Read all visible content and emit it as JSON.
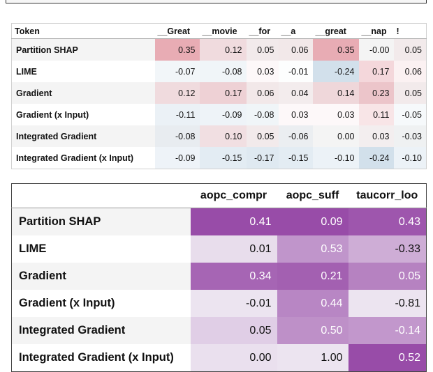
{
  "table1": {
    "header": [
      "Token",
      "__Great",
      "__movie",
      "__for",
      "__a",
      "__great",
      "__nap",
      "!"
    ],
    "rows": [
      [
        "Partition SHAP",
        "0.35",
        "0.12",
        "0.05",
        "0.06",
        "0.35",
        "-0.00",
        "0.05"
      ],
      [
        "LIME",
        "-0.07",
        "-0.08",
        "0.03",
        "-0.01",
        "-0.24",
        "0.17",
        "0.06"
      ],
      [
        "Gradient",
        "0.12",
        "0.17",
        "0.06",
        "0.04",
        "0.14",
        "0.23",
        "0.05"
      ],
      [
        "Gradient (x Input)",
        "-0.11",
        "-0.09",
        "-0.08",
        "0.03",
        "0.03",
        "0.11",
        "-0.05"
      ],
      [
        "Integrated Gradient",
        "-0.08",
        "0.10",
        "0.05",
        "-0.06",
        "0.00",
        "0.03",
        "-0.03"
      ],
      [
        "Integrated Gradient (x Input)",
        "-0.09",
        "-0.15",
        "-0.17",
        "-0.15",
        "-0.10",
        "-0.24",
        "-0.10"
      ]
    ]
  },
  "table2": {
    "header": [
      "aopc_compr",
      "aopc_suff",
      "taucorr_loo"
    ],
    "rows": [
      [
        "Partition SHAP",
        "0.41",
        "0.09",
        "0.43"
      ],
      [
        "LIME",
        "0.01",
        "0.53",
        "-0.33"
      ],
      [
        "Gradient",
        "0.34",
        "0.21",
        "0.05"
      ],
      [
        "Gradient (x Input)",
        "-0.01",
        "0.44",
        "-0.81"
      ],
      [
        "Integrated Gradient",
        "0.05",
        "0.50",
        "-0.14"
      ],
      [
        "Integrated Gradient (x Input)",
        "0.00",
        "1.00",
        "0.52"
      ]
    ]
  }
}
